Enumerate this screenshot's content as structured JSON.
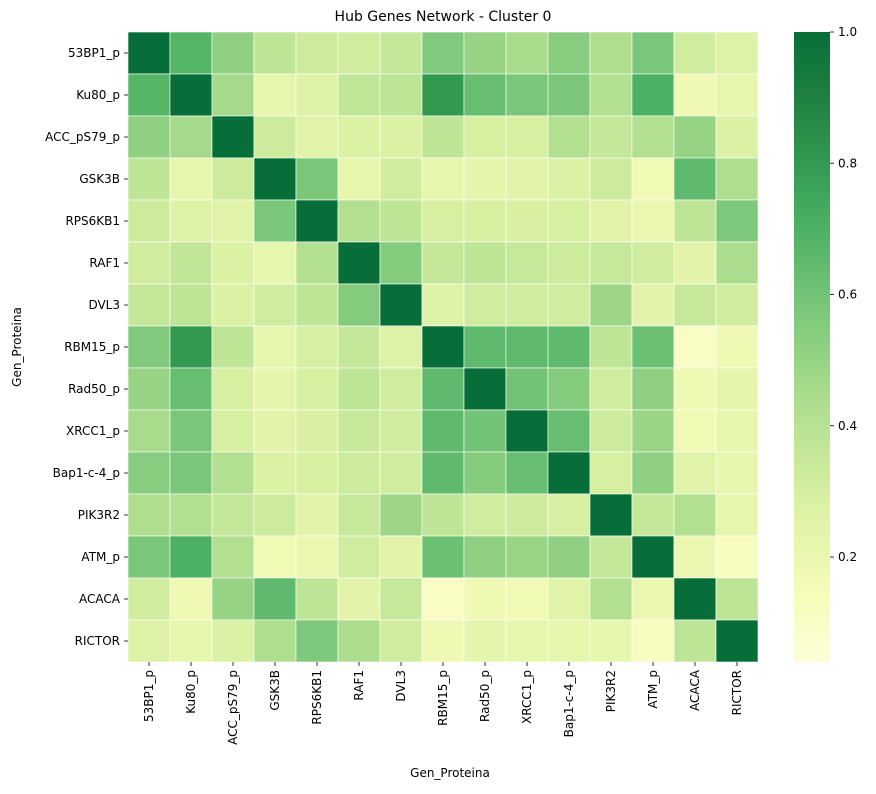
{
  "chart_data": {
    "type": "heatmap",
    "title": "Hub Genes Network - Cluster 0",
    "xlabel": "Gen_Proteina",
    "ylabel": "Gen_Proteina",
    "labels": [
      "53BP1_p",
      "Ku80_p",
      "ACC_pS79_p",
      "GSK3B",
      "RPS6KB1",
      "RAF1",
      "DVL3",
      "RBM15_p",
      "Rad50_p",
      "XRCC1_p",
      "Bap1-c-4_p",
      "PIK3R2",
      "ATM_p",
      "ACACA",
      "RICTOR"
    ],
    "matrix": [
      [
        1.0,
        0.68,
        0.52,
        0.38,
        0.33,
        0.32,
        0.36,
        0.56,
        0.5,
        0.45,
        0.54,
        0.43,
        0.58,
        0.32,
        0.27
      ],
      [
        0.68,
        1.0,
        0.46,
        0.22,
        0.27,
        0.37,
        0.38,
        0.8,
        0.63,
        0.58,
        0.58,
        0.42,
        0.7,
        0.18,
        0.22
      ],
      [
        0.52,
        0.46,
        1.0,
        0.33,
        0.25,
        0.28,
        0.28,
        0.38,
        0.3,
        0.3,
        0.42,
        0.36,
        0.42,
        0.5,
        0.28
      ],
      [
        0.38,
        0.22,
        0.33,
        1.0,
        0.58,
        0.22,
        0.32,
        0.22,
        0.23,
        0.24,
        0.28,
        0.33,
        0.17,
        0.65,
        0.43
      ],
      [
        0.33,
        0.27,
        0.25,
        0.58,
        1.0,
        0.42,
        0.38,
        0.3,
        0.3,
        0.29,
        0.3,
        0.24,
        0.2,
        0.38,
        0.57
      ],
      [
        0.32,
        0.37,
        0.28,
        0.22,
        0.42,
        1.0,
        0.55,
        0.36,
        0.38,
        0.35,
        0.33,
        0.35,
        0.32,
        0.24,
        0.44
      ],
      [
        0.36,
        0.38,
        0.28,
        0.32,
        0.38,
        0.55,
        1.0,
        0.27,
        0.32,
        0.32,
        0.32,
        0.48,
        0.24,
        0.35,
        0.32
      ],
      [
        0.56,
        0.8,
        0.38,
        0.22,
        0.3,
        0.36,
        0.27,
        1.0,
        0.65,
        0.65,
        0.65,
        0.38,
        0.62,
        0.1,
        0.18
      ],
      [
        0.5,
        0.63,
        0.3,
        0.23,
        0.3,
        0.38,
        0.32,
        0.65,
        1.0,
        0.6,
        0.55,
        0.32,
        0.52,
        0.18,
        0.23
      ],
      [
        0.45,
        0.58,
        0.3,
        0.24,
        0.29,
        0.35,
        0.32,
        0.65,
        0.6,
        1.0,
        0.63,
        0.33,
        0.49,
        0.17,
        0.22
      ],
      [
        0.54,
        0.58,
        0.42,
        0.28,
        0.3,
        0.33,
        0.32,
        0.65,
        0.55,
        0.63,
        1.0,
        0.3,
        0.52,
        0.25,
        0.22
      ],
      [
        0.43,
        0.42,
        0.36,
        0.33,
        0.24,
        0.35,
        0.48,
        0.38,
        0.32,
        0.33,
        0.3,
        1.0,
        0.36,
        0.42,
        0.22
      ],
      [
        0.58,
        0.7,
        0.42,
        0.17,
        0.2,
        0.32,
        0.24,
        0.62,
        0.52,
        0.49,
        0.52,
        0.36,
        1.0,
        0.2,
        0.12
      ],
      [
        0.32,
        0.18,
        0.5,
        0.65,
        0.38,
        0.24,
        0.35,
        0.1,
        0.18,
        0.17,
        0.25,
        0.42,
        0.2,
        1.0,
        0.38
      ],
      [
        0.27,
        0.22,
        0.28,
        0.43,
        0.57,
        0.44,
        0.32,
        0.18,
        0.23,
        0.22,
        0.22,
        0.22,
        0.12,
        0.38,
        1.0
      ]
    ],
    "vmin": 0.04,
    "vmax": 1.0,
    "colormap": "YlGn",
    "colorbar_ticks": [
      "0.2",
      "0.4",
      "0.6",
      "0.8",
      "1.0"
    ],
    "colorbar_tick_values": [
      0.2,
      0.4,
      0.6,
      0.8,
      1.0
    ],
    "grid": false,
    "legend": "colorbar-right"
  }
}
